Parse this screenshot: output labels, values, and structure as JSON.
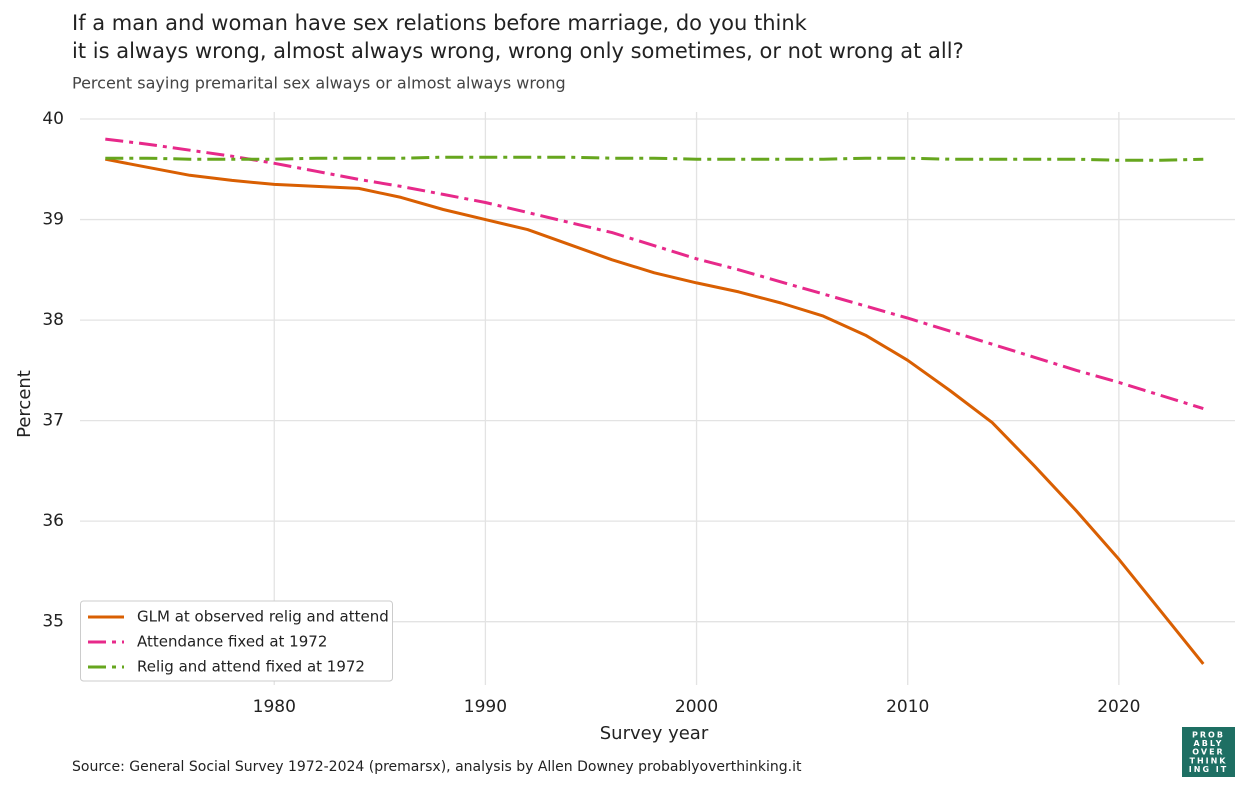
{
  "chart_data": {
    "type": "line",
    "title": [
      "If a man and woman have sex relations before marriage, do you think",
      "it is always wrong, almost always wrong, wrong only sometimes, or not wrong at all?"
    ],
    "subtitle": "Percent saying premarital sex always or almost always wrong",
    "x_label": "Survey year",
    "y_label": "Percent",
    "source": "Source: General Social Survey 1972-2024 (premarsx), analysis by Allen Downey probablyoverthinking.it",
    "logo": [
      "PROB",
      "ABLY",
      "OVER",
      "THINK",
      "ING IT"
    ],
    "x": [
      1972,
      1974,
      1976,
      1978,
      1980,
      1982,
      1984,
      1986,
      1988,
      1990,
      1992,
      1994,
      1996,
      1998,
      2000,
      2002,
      2004,
      2006,
      2008,
      2010,
      2012,
      2014,
      2016,
      2018,
      2020,
      2022,
      2024
    ],
    "series": [
      {
        "name": "GLM at observed relig and attend",
        "color": "#d95f02",
        "dash": "solid",
        "values": [
          39.6,
          39.52,
          39.44,
          39.39,
          39.35,
          39.33,
          39.31,
          39.22,
          39.1,
          39.0,
          38.9,
          38.75,
          38.6,
          38.47,
          38.37,
          38.28,
          38.17,
          38.04,
          37.85,
          37.6,
          37.3,
          36.98,
          36.55,
          36.1,
          35.62,
          35.1,
          34.58
        ]
      },
      {
        "name": "Attendance fixed at 1972",
        "color": "#e7298a",
        "dash": "dashdot",
        "values": [
          39.8,
          39.75,
          39.69,
          39.63,
          39.56,
          39.48,
          39.4,
          39.33,
          39.25,
          39.17,
          39.07,
          38.97,
          38.87,
          38.74,
          38.61,
          38.5,
          38.38,
          38.26,
          38.14,
          38.02,
          37.89,
          37.76,
          37.63,
          37.5,
          37.38,
          37.25,
          37.12
        ]
      },
      {
        "name": "Relig and attend fixed at 1972",
        "color": "#66a61e",
        "dash": "dashdot",
        "values": [
          39.61,
          39.61,
          39.6,
          39.6,
          39.6,
          39.61,
          39.61,
          39.61,
          39.62,
          39.62,
          39.62,
          39.62,
          39.61,
          39.61,
          39.6,
          39.6,
          39.6,
          39.6,
          39.61,
          39.61,
          39.6,
          39.6,
          39.6,
          39.6,
          39.59,
          39.59,
          39.6
        ]
      }
    ],
    "xlim": [
      1970.8,
      2025.5
    ],
    "xticks": [
      1980,
      1990,
      2000,
      2010,
      2020
    ],
    "ylim": [
      34.37,
      40.07
    ],
    "yticks": [
      35,
      36,
      37,
      38,
      39,
      40
    ],
    "grid": true,
    "legend": "lower left"
  }
}
